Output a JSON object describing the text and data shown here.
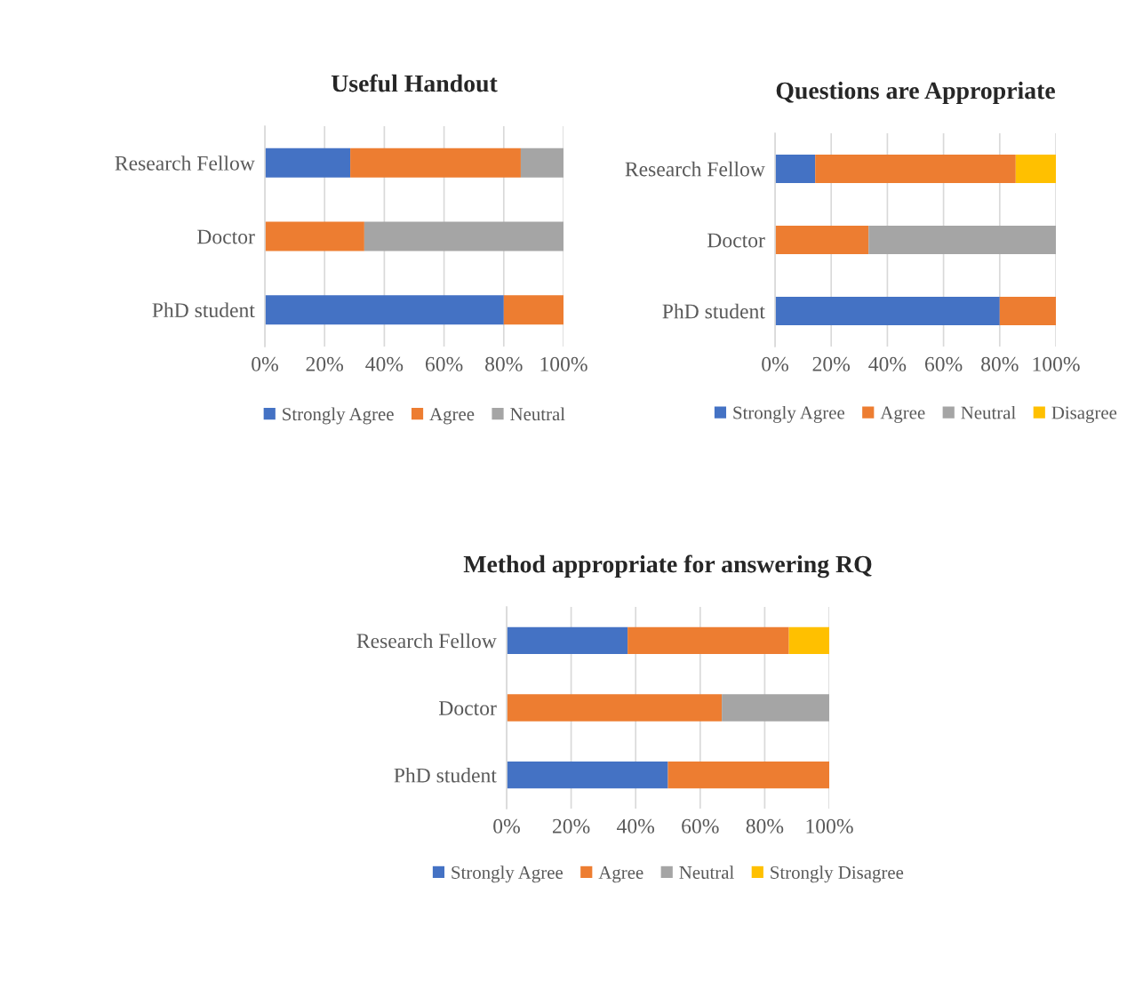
{
  "chart_data": [
    {
      "type": "bar",
      "orientation": "horizontal",
      "stacked": true,
      "title": "Useful Handout",
      "categories": [
        "Research Fellow",
        "Doctor",
        "PhD student"
      ],
      "series": [
        {
          "name": "Strongly Agree",
          "color": "#4472c4",
          "values": [
            28.6,
            null,
            80
          ]
        },
        {
          "name": "Agree",
          "color": "#ed7d31",
          "values": [
            57.1,
            33.3,
            20
          ]
        },
        {
          "name": "Neutral",
          "color": "#a5a5a5",
          "values": [
            14.3,
            66.7,
            null
          ]
        }
      ],
      "xlim": [
        0,
        100
      ],
      "xticks": [
        {
          "value": 0,
          "label": "0%"
        },
        {
          "value": 20,
          "label": "20%"
        },
        {
          "value": 40,
          "label": "40%"
        },
        {
          "value": 60,
          "label": "60%"
        },
        {
          "value": 80,
          "label": "80%"
        },
        {
          "value": 100,
          "label": "100%"
        }
      ],
      "grid": "x",
      "legend": "bottom"
    },
    {
      "type": "bar",
      "orientation": "horizontal",
      "stacked": true,
      "title": "Questions are Appropriate",
      "categories": [
        "Research Fellow",
        "Doctor",
        "PhD student"
      ],
      "series": [
        {
          "name": "Strongly Agree",
          "color": "#4472c4",
          "values": [
            14.3,
            null,
            80
          ]
        },
        {
          "name": "Agree",
          "color": "#ed7d31",
          "values": [
            71.4,
            33.3,
            20
          ]
        },
        {
          "name": "Neutral",
          "color": "#a5a5a5",
          "values": [
            null,
            66.7,
            null
          ]
        },
        {
          "name": "Disagree",
          "color": "#ffc000",
          "values": [
            14.3,
            null,
            null
          ]
        }
      ],
      "xlim": [
        0,
        100
      ],
      "xticks": [
        {
          "value": 0,
          "label": "0%"
        },
        {
          "value": 20,
          "label": "20%"
        },
        {
          "value": 40,
          "label": "40%"
        },
        {
          "value": 60,
          "label": "60%"
        },
        {
          "value": 80,
          "label": "80%"
        },
        {
          "value": 100,
          "label": "100%"
        }
      ],
      "grid": "x",
      "legend": "bottom"
    },
    {
      "type": "bar",
      "orientation": "horizontal",
      "stacked": true,
      "title": "Method appropriate for answering RQ",
      "categories": [
        "Research Fellow",
        "Doctor",
        "PhD student"
      ],
      "series": [
        {
          "name": "Strongly Agree",
          "color": "#4472c4",
          "values": [
            37.5,
            null,
            50
          ]
        },
        {
          "name": "Agree",
          "color": "#ed7d31",
          "values": [
            50,
            66.7,
            50
          ]
        },
        {
          "name": "Neutral",
          "color": "#a5a5a5",
          "values": [
            null,
            33.3,
            null
          ]
        },
        {
          "name": "Strongly Disagree",
          "color": "#ffc000",
          "values": [
            12.5,
            null,
            null
          ]
        }
      ],
      "xlim": [
        0,
        100
      ],
      "xticks": [
        {
          "value": 0,
          "label": "0%"
        },
        {
          "value": 20,
          "label": "20%"
        },
        {
          "value": 40,
          "label": "40%"
        },
        {
          "value": 60,
          "label": "60%"
        },
        {
          "value": 80,
          "label": "80%"
        },
        {
          "value": 100,
          "label": "100%"
        }
      ],
      "grid": "x",
      "legend": "bottom"
    }
  ]
}
